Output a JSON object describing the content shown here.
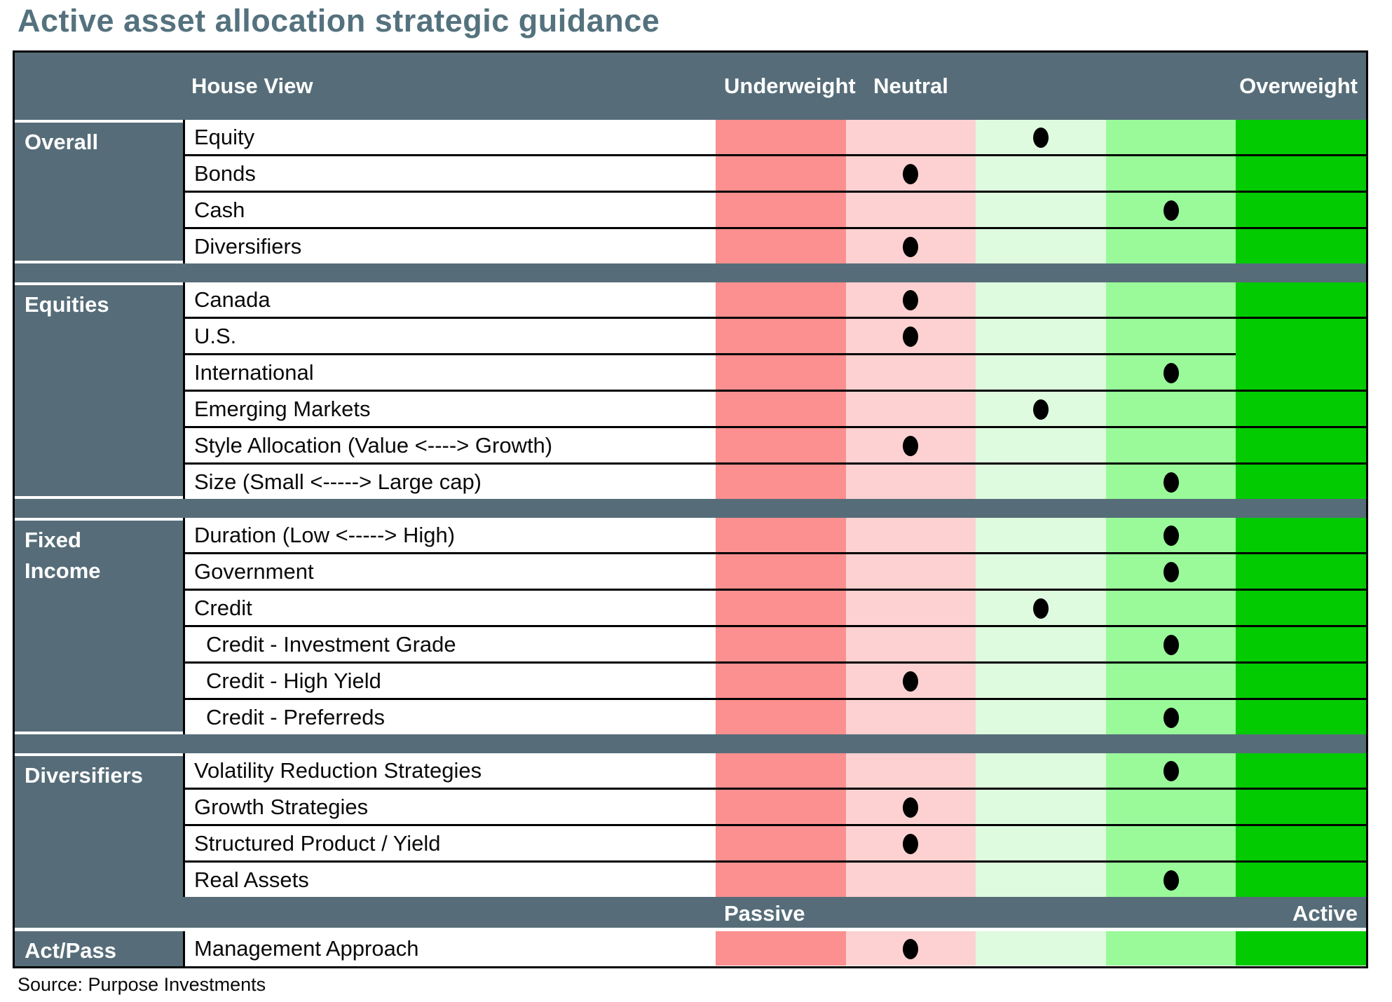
{
  "title": "Active asset allocation strategic guidance",
  "source": "Source: Purpose Investments",
  "header": {
    "house_view": "House View",
    "underweight": "Underweight",
    "neutral": "Neutral",
    "overweight": "Overweight"
  },
  "band": {
    "passive": "Passive",
    "active": "Active"
  },
  "colors": {
    "slate": "#566D79",
    "title": "#54727E",
    "border": "#000000",
    "dot": "#000000",
    "scale": [
      "#FC8F8F",
      "#FDD1D1",
      "#DFFBDF",
      "#9AFA9A",
      "#02CB02"
    ]
  },
  "sections": [
    {
      "label": "Overall",
      "rows": [
        {
          "label": "Equity",
          "position": 3
        },
        {
          "label": "Bonds",
          "position": 2
        },
        {
          "label": "Cash",
          "position": 4
        },
        {
          "label": "Diversifiers",
          "position": 2
        }
      ]
    },
    {
      "label": "Equities",
      "rows": [
        {
          "label": "Canada",
          "position": 2
        },
        {
          "label": "U.S.",
          "position": 2
        },
        {
          "label": "International",
          "position": 4,
          "no_border_overweight": true
        },
        {
          "label": "Emerging Markets",
          "position": 3
        },
        {
          "label": "Style Allocation (Value <----> Growth)",
          "position": 2
        },
        {
          "label": "Size (Small <----->  Large cap)",
          "position": 4
        }
      ]
    },
    {
      "label": "Fixed Income",
      "rows": [
        {
          "label": "Duration (Low <-----> High)",
          "position": 4
        },
        {
          "label": "Government",
          "position": 4
        },
        {
          "label": "Credit",
          "position": 3
        },
        {
          "label": "Credit - Investment Grade",
          "position": 4,
          "indent": true
        },
        {
          "label": "Credit - High Yield",
          "position": 2,
          "indent": true
        },
        {
          "label": "Credit - Preferreds",
          "position": 4,
          "indent": true
        }
      ]
    },
    {
      "label": "Diversifiers",
      "merge_bottom": true,
      "rows": [
        {
          "label": "Volatility Reduction Strategies",
          "position": 4
        },
        {
          "label": "Growth Strategies",
          "position": 2
        },
        {
          "label": "Structured Product / Yield",
          "position": 2
        },
        {
          "label": "Real Assets",
          "position": 4
        }
      ]
    }
  ],
  "act_pass": {
    "label": "Act/Pass",
    "rows": [
      {
        "label": "Management Approach",
        "position": 2
      }
    ]
  },
  "chart_data": {
    "type": "table",
    "title": "Active asset allocation strategic guidance",
    "column_headers": [
      "House View",
      "Underweight",
      "Neutral",
      "Overweight"
    ],
    "position_scale": "1 = strong underweight, 2 = underweight, 3 = neutral, 4 = overweight, 5 = strong overweight",
    "rows": [
      {
        "section": "Overall",
        "item": "Equity",
        "position": 3
      },
      {
        "section": "Overall",
        "item": "Bonds",
        "position": 2
      },
      {
        "section": "Overall",
        "item": "Cash",
        "position": 4
      },
      {
        "section": "Overall",
        "item": "Diversifiers",
        "position": 2
      },
      {
        "section": "Equities",
        "item": "Canada",
        "position": 2
      },
      {
        "section": "Equities",
        "item": "U.S.",
        "position": 2
      },
      {
        "section": "Equities",
        "item": "International",
        "position": 4
      },
      {
        "section": "Equities",
        "item": "Emerging Markets",
        "position": 3
      },
      {
        "section": "Equities",
        "item": "Style Allocation (Value <----> Growth)",
        "position": 2
      },
      {
        "section": "Equities",
        "item": "Size (Small <----->  Large cap)",
        "position": 4
      },
      {
        "section": "Fixed Income",
        "item": "Duration (Low <-----> High)",
        "position": 4
      },
      {
        "section": "Fixed Income",
        "item": "Government",
        "position": 4
      },
      {
        "section": "Fixed Income",
        "item": "Credit",
        "position": 3
      },
      {
        "section": "Fixed Income",
        "item": "Credit - Investment Grade",
        "position": 4
      },
      {
        "section": "Fixed Income",
        "item": "Credit - High Yield",
        "position": 2
      },
      {
        "section": "Fixed Income",
        "item": "Credit - Preferreds",
        "position": 4
      },
      {
        "section": "Diversifiers",
        "item": "Volatility Reduction Strategies",
        "position": 4
      },
      {
        "section": "Diversifiers",
        "item": "Growth Strategies",
        "position": 2
      },
      {
        "section": "Diversifiers",
        "item": "Structured Product / Yield",
        "position": 2
      },
      {
        "section": "Diversifiers",
        "item": "Real Assets",
        "position": 4
      },
      {
        "section": "Act/Pass",
        "item": "Management Approach",
        "position": 2
      }
    ],
    "act_pass_scale_labels": [
      "Passive",
      "Active"
    ]
  }
}
